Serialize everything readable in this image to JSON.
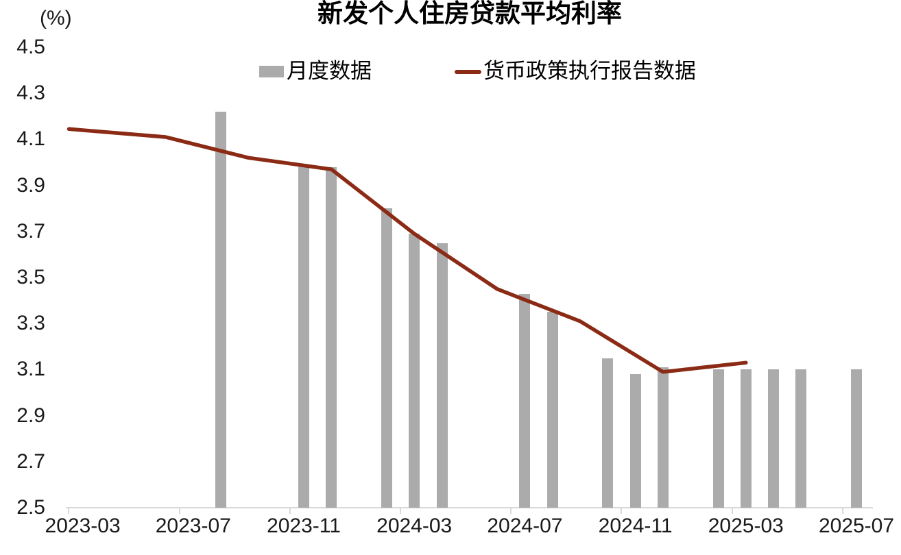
{
  "title": "新发个人住房贷款平均利率",
  "y_axis": {
    "unit_label": "(%)",
    "min": 2.5,
    "max": 4.5,
    "step": 0.2,
    "tick_labels": [
      "4.5",
      "4.3",
      "4.1",
      "3.9",
      "3.7",
      "3.5",
      "3.3",
      "3.1",
      "2.9",
      "2.7",
      "2.5"
    ]
  },
  "x_axis": {
    "start_month": "2023-03",
    "end_month": "2025-07",
    "tick_labels": [
      "2023-03",
      "2023-07",
      "2023-11",
      "2024-03",
      "2024-07",
      "2024-11",
      "2025-03",
      "2025-07"
    ]
  },
  "legend": [
    {
      "label": "月度数据",
      "marker": "bar-swatch",
      "color": "#ABABAB"
    },
    {
      "label": "货币政策执行报告数据",
      "marker": "line-swatch",
      "color": "#8B2B15"
    }
  ],
  "colors": {
    "bar": "#ABABAB",
    "line": "#8B2B15",
    "axis": "#D9D9D9",
    "text": "#1A1A1A",
    "background": "#FFFFFF"
  },
  "chart_data": {
    "type": "combo",
    "title": "新发个人住房贷款平均利率",
    "ylabel": "(%)",
    "ylim": [
      2.5,
      4.5
    ],
    "ytick_step": 0.2,
    "x_range": [
      "2023-03",
      "2025-07"
    ],
    "xtick_labels": [
      "2023-03",
      "2023-07",
      "2023-11",
      "2024-03",
      "2024-07",
      "2024-11",
      "2025-03",
      "2025-07"
    ],
    "grid": false,
    "legend_position": "top",
    "series": [
      {
        "name": "月度数据",
        "type": "bar",
        "color": "#ABABAB",
        "data": [
          [
            "2023-08",
            4.22
          ],
          [
            "2023-11",
            3.99
          ],
          [
            "2023-12",
            3.98
          ],
          [
            "2024-02",
            3.8
          ],
          [
            "2024-03",
            3.69
          ],
          [
            "2024-04",
            3.65
          ],
          [
            "2024-07",
            3.43
          ],
          [
            "2024-08",
            3.35
          ],
          [
            "2024-10",
            3.15
          ],
          [
            "2024-11",
            3.08
          ],
          [
            "2024-12",
            3.11
          ],
          [
            "2025-02",
            3.1
          ],
          [
            "2025-03",
            3.1
          ],
          [
            "2025-04",
            3.1
          ],
          [
            "2025-05",
            3.1
          ],
          [
            "2025-07",
            3.1
          ]
        ]
      },
      {
        "name": "货币政策执行报告数据",
        "type": "line",
        "color": "#8B2B15",
        "data": [
          [
            "2023-03",
            4.14
          ],
          [
            "2023-06",
            4.11
          ],
          [
            "2023-09",
            4.02
          ],
          [
            "2023-12",
            3.97
          ],
          [
            "2024-03",
            3.69
          ],
          [
            "2024-06",
            3.45
          ],
          [
            "2024-09",
            3.31
          ],
          [
            "2024-12",
            3.09
          ],
          [
            "2025-03",
            3.13
          ]
        ]
      }
    ]
  }
}
